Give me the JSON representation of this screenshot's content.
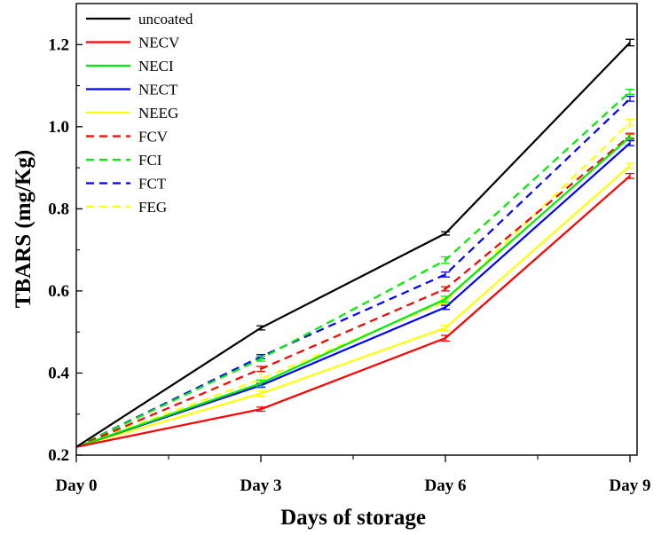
{
  "chart_data": {
    "type": "line",
    "title": "",
    "xlabel": "Days of storage",
    "ylabel": "TBARS (mg/Kg)",
    "categories": [
      "Day 0",
      "Day 3",
      "Day 6",
      "Day 9"
    ],
    "ylim": [
      0.2,
      1.3
    ],
    "yticks": [
      "0.2",
      "0.4",
      "0.6",
      "0.8",
      "1.0",
      "1.2"
    ],
    "legend_position": "top-left",
    "series": [
      {
        "name": "uncoated",
        "color": "#000000",
        "dash": "solid",
        "values": [
          0.22,
          0.51,
          0.74,
          1.205
        ],
        "errors": [
          0.004,
          0.005,
          0.004,
          0.008
        ]
      },
      {
        "name": "NECV",
        "color": "#ff0000",
        "dash": "solid",
        "values": [
          0.22,
          0.312,
          0.485,
          0.88
        ],
        "errors": [
          0.004,
          0.005,
          0.007,
          0.006
        ]
      },
      {
        "name": "NECI",
        "color": "#00ee00",
        "dash": "solid",
        "values": [
          0.22,
          0.375,
          0.58,
          0.975
        ],
        "errors": [
          0.004,
          0.008,
          0.007,
          0.006
        ]
      },
      {
        "name": "NECT",
        "color": "#0000ff",
        "dash": "solid",
        "values": [
          0.22,
          0.37,
          0.56,
          0.96
        ],
        "errors": [
          0.004,
          0.005,
          0.005,
          0.006
        ]
      },
      {
        "name": "NEEG",
        "color": "#ffff00",
        "dash": "solid",
        "values": [
          0.22,
          0.35,
          0.51,
          0.905
        ],
        "errors": [
          0.004,
          0.006,
          0.006,
          0.006
        ]
      },
      {
        "name": "FCV",
        "color": "#ff0000",
        "dash": "dashed",
        "values": [
          0.22,
          0.41,
          0.605,
          0.978
        ],
        "errors": [
          0.004,
          0.006,
          0.005,
          0.006
        ]
      },
      {
        "name": "FCI",
        "color": "#00ee00",
        "dash": "dashed",
        "values": [
          0.22,
          0.435,
          0.675,
          1.085
        ],
        "errors": [
          0.004,
          0.006,
          0.008,
          0.006
        ]
      },
      {
        "name": "FCT",
        "color": "#0000ff",
        "dash": "dashed",
        "values": [
          0.22,
          0.44,
          0.64,
          1.068
        ],
        "errors": [
          0.004,
          0.005,
          0.006,
          0.006
        ]
      },
      {
        "name": "FEG",
        "color": "#ffff00",
        "dash": "dashed",
        "values": [
          0.22,
          0.385,
          0.575,
          1.01
        ],
        "errors": [
          0.004,
          0.018,
          0.006,
          0.008
        ]
      }
    ]
  }
}
